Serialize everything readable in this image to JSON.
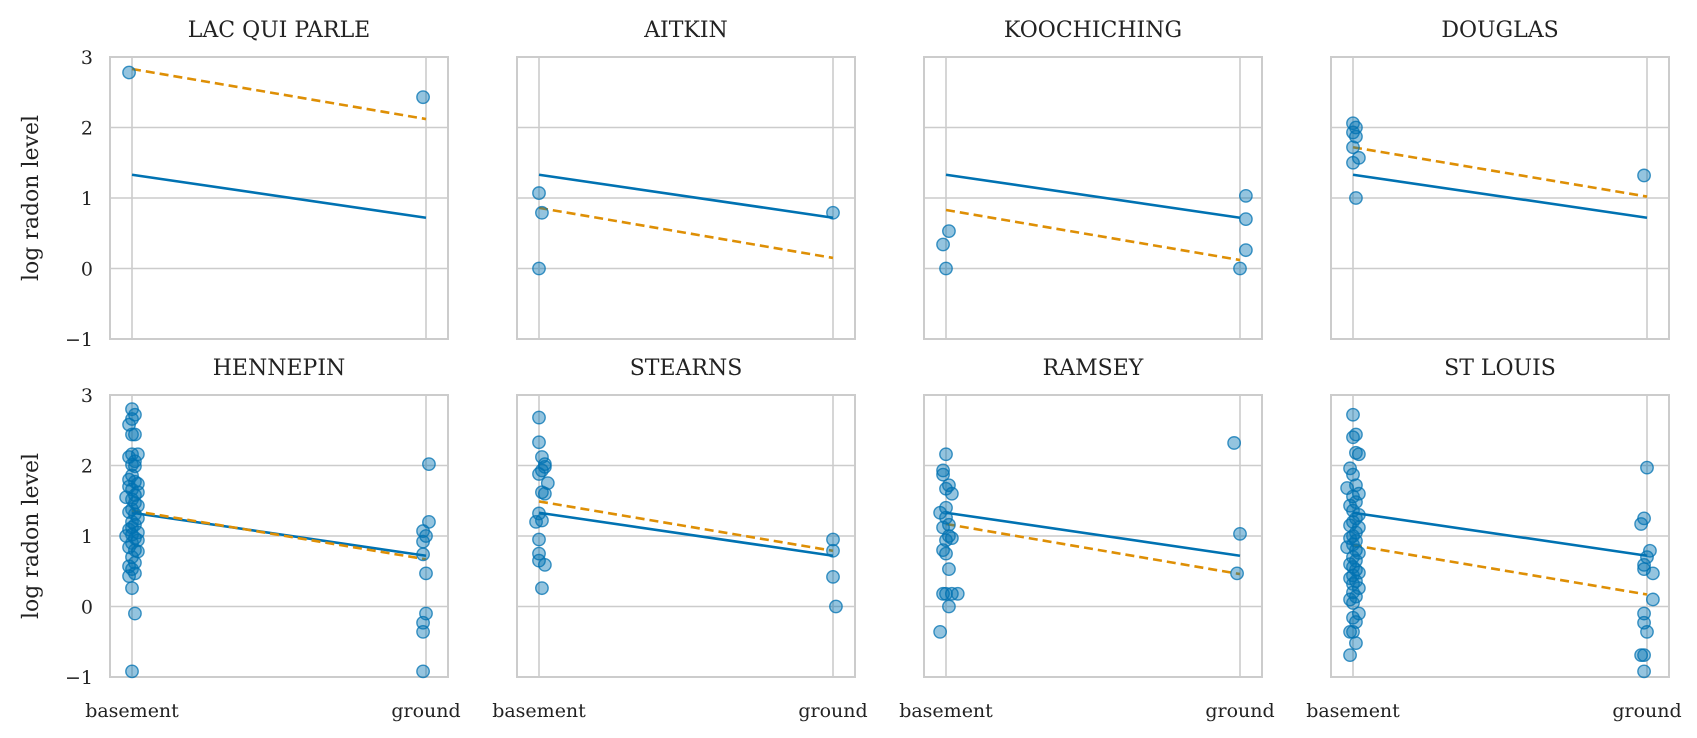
{
  "chart_data": {
    "type": "scatter",
    "ylabel": "log radon level",
    "ylim": [
      -1,
      3
    ],
    "yticks": [
      "−1",
      "0",
      "1",
      "2",
      "3"
    ],
    "ytick_values": [
      -1,
      0,
      1,
      2,
      3
    ],
    "xticks": [
      "basement",
      "ground"
    ],
    "xtick_values": [
      0,
      1
    ],
    "grid": true,
    "colors": {
      "points": "#0072b2",
      "pooled_line": "#0072b2",
      "county_line": "#de8f05",
      "frame": "#cccccc"
    },
    "pooled_line": {
      "basement": 1.33,
      "ground": 0.72
    },
    "panels": [
      {
        "title": "LAC QUI PARLE",
        "county_line": {
          "basement": 2.83,
          "ground": 2.12
        },
        "points": [
          [
            -0.01,
            2.78
          ],
          [
            0.99,
            2.43
          ]
        ]
      },
      {
        "title": "AITKIN",
        "county_line": {
          "basement": 0.86,
          "ground": 0.15
        },
        "points": [
          [
            0.0,
            1.07
          ],
          [
            0.01,
            0.79
          ],
          [
            0.0,
            0.0
          ],
          [
            1.0,
            0.79
          ]
        ]
      },
      {
        "title": "KOOCHICHING",
        "county_line": {
          "basement": 0.83,
          "ground": 0.12
        },
        "points": [
          [
            -0.01,
            0.34
          ],
          [
            0.01,
            0.53
          ],
          [
            0.0,
            0.0
          ],
          [
            1.02,
            1.03
          ],
          [
            1.02,
            0.7
          ],
          [
            1.02,
            0.26
          ],
          [
            1.0,
            0.0
          ]
        ]
      },
      {
        "title": "DOUGLAS",
        "county_line": {
          "basement": 1.72,
          "ground": 1.02
        },
        "points": [
          [
            0.0,
            2.06
          ],
          [
            0.01,
            2.0
          ],
          [
            0.0,
            1.93
          ],
          [
            0.01,
            1.87
          ],
          [
            0.0,
            1.72
          ],
          [
            0.02,
            1.57
          ],
          [
            0.0,
            1.5
          ],
          [
            0.01,
            1.0
          ],
          [
            0.99,
            1.32
          ]
        ]
      },
      {
        "title": "HENNEPIN",
        "county_line": {
          "basement": 1.36,
          "ground": 0.67
        },
        "points": [
          [
            0.0,
            2.8
          ],
          [
            0.01,
            2.72
          ],
          [
            0.0,
            2.66
          ],
          [
            -0.01,
            2.58
          ],
          [
            0.0,
            2.44
          ],
          [
            0.01,
            2.44
          ],
          [
            0.0,
            2.16
          ],
          [
            0.02,
            2.16
          ],
          [
            -0.01,
            2.12
          ],
          [
            0.01,
            2.06
          ],
          [
            0.0,
            2.01
          ],
          [
            0.01,
            1.99
          ],
          [
            0.0,
            1.86
          ],
          [
            -0.01,
            1.8
          ],
          [
            0.01,
            1.77
          ],
          [
            0.02,
            1.74
          ],
          [
            -0.01,
            1.7
          ],
          [
            0.0,
            1.66
          ],
          [
            0.02,
            1.62
          ],
          [
            0.01,
            1.58
          ],
          [
            -0.02,
            1.55
          ],
          [
            0.0,
            1.52
          ],
          [
            0.01,
            1.47
          ],
          [
            0.02,
            1.43
          ],
          [
            0.0,
            1.38
          ],
          [
            -0.01,
            1.34
          ],
          [
            0.01,
            1.31
          ],
          [
            0.02,
            1.25
          ],
          [
            0.0,
            1.2
          ],
          [
            0.01,
            1.16
          ],
          [
            0.0,
            1.12
          ],
          [
            -0.01,
            1.09
          ],
          [
            0.02,
            1.05
          ],
          [
            0.0,
            1.02
          ],
          [
            -0.02,
            1.0
          ],
          [
            0.01,
            0.97
          ],
          [
            0.02,
            0.94
          ],
          [
            0.0,
            0.9
          ],
          [
            -0.01,
            0.84
          ],
          [
            0.01,
            0.8
          ],
          [
            0.02,
            0.78
          ],
          [
            0.0,
            0.7
          ],
          [
            0.01,
            0.62
          ],
          [
            -0.01,
            0.57
          ],
          [
            0.0,
            0.53
          ],
          [
            0.01,
            0.47
          ],
          [
            -0.01,
            0.43
          ],
          [
            0.0,
            0.26
          ],
          [
            0.01,
            -0.1
          ],
          [
            0.0,
            -0.92
          ],
          [
            1.01,
            2.02
          ],
          [
            1.01,
            1.2
          ],
          [
            0.99,
            1.07
          ],
          [
            1.0,
            1.0
          ],
          [
            0.99,
            0.92
          ],
          [
            0.99,
            0.74
          ],
          [
            1.0,
            0.47
          ],
          [
            1.0,
            -0.1
          ],
          [
            0.99,
            -0.23
          ],
          [
            0.99,
            -0.36
          ],
          [
            0.99,
            -0.92
          ]
        ]
      },
      {
        "title": "STEARNS",
        "county_line": {
          "basement": 1.49,
          "ground": 0.79
        },
        "points": [
          [
            0.0,
            2.68
          ],
          [
            0.0,
            2.33
          ],
          [
            0.01,
            2.12
          ],
          [
            0.02,
            2.02
          ],
          [
            0.02,
            1.98
          ],
          [
            0.01,
            1.93
          ],
          [
            0.0,
            1.88
          ],
          [
            0.03,
            1.75
          ],
          [
            0.01,
            1.62
          ],
          [
            0.02,
            1.6
          ],
          [
            0.0,
            1.32
          ],
          [
            0.01,
            1.22
          ],
          [
            -0.01,
            1.2
          ],
          [
            0.0,
            0.95
          ],
          [
            0.0,
            0.75
          ],
          [
            0.0,
            0.65
          ],
          [
            0.02,
            0.59
          ],
          [
            0.01,
            0.26
          ],
          [
            1.0,
            0.95
          ],
          [
            1.0,
            0.79
          ],
          [
            1.0,
            0.42
          ],
          [
            1.01,
            0.0
          ]
        ]
      },
      {
        "title": "RAMSEY",
        "county_line": {
          "basement": 1.17,
          "ground": 0.46
        },
        "points": [
          [
            0.0,
            2.16
          ],
          [
            -0.01,
            1.93
          ],
          [
            -0.01,
            1.87
          ],
          [
            0.01,
            1.72
          ],
          [
            0.0,
            1.67
          ],
          [
            0.02,
            1.6
          ],
          [
            0.0,
            1.4
          ],
          [
            -0.02,
            1.33
          ],
          [
            0.0,
            1.26
          ],
          [
            0.01,
            1.16
          ],
          [
            -0.01,
            1.12
          ],
          [
            0.01,
            1.0
          ],
          [
            0.02,
            0.97
          ],
          [
            0.0,
            0.94
          ],
          [
            -0.01,
            0.8
          ],
          [
            0.0,
            0.75
          ],
          [
            0.01,
            0.53
          ],
          [
            0.0,
            0.18
          ],
          [
            0.02,
            0.18
          ],
          [
            0.04,
            0.18
          ],
          [
            -0.01,
            0.18
          ],
          [
            0.01,
            0.0
          ],
          [
            -0.02,
            -0.36
          ],
          [
            0.98,
            2.32
          ],
          [
            1.0,
            1.03
          ],
          [
            0.99,
            0.47
          ]
        ]
      },
      {
        "title": "ST LOUIS",
        "county_line": {
          "basement": 0.87,
          "ground": 0.17
        },
        "points": [
          [
            0.0,
            2.72
          ],
          [
            0.01,
            2.44
          ],
          [
            0.0,
            2.4
          ],
          [
            0.01,
            2.18
          ],
          [
            0.02,
            2.16
          ],
          [
            -0.01,
            1.96
          ],
          [
            0.0,
            1.87
          ],
          [
            0.01,
            1.72
          ],
          [
            -0.02,
            1.68
          ],
          [
            0.02,
            1.6
          ],
          [
            0.0,
            1.56
          ],
          [
            0.01,
            1.48
          ],
          [
            -0.01,
            1.43
          ],
          [
            0.0,
            1.36
          ],
          [
            0.02,
            1.3
          ],
          [
            0.01,
            1.25
          ],
          [
            0.0,
            1.2
          ],
          [
            -0.01,
            1.15
          ],
          [
            0.02,
            1.12
          ],
          [
            0.01,
            1.05
          ],
          [
            0.0,
            1.0
          ],
          [
            -0.01,
            0.97
          ],
          [
            0.01,
            0.93
          ],
          [
            0.0,
            0.88
          ],
          [
            -0.02,
            0.84
          ],
          [
            0.01,
            0.8
          ],
          [
            0.02,
            0.76
          ],
          [
            0.0,
            0.7
          ],
          [
            0.01,
            0.65
          ],
          [
            -0.01,
            0.6
          ],
          [
            0.0,
            0.56
          ],
          [
            0.01,
            0.52
          ],
          [
            0.02,
            0.48
          ],
          [
            0.0,
            0.44
          ],
          [
            -0.01,
            0.4
          ],
          [
            0.01,
            0.36
          ],
          [
            0.0,
            0.32
          ],
          [
            0.02,
            0.26
          ],
          [
            0.0,
            0.2
          ],
          [
            0.01,
            0.14
          ],
          [
            -0.01,
            0.1
          ],
          [
            0.0,
            0.05
          ],
          [
            0.02,
            -0.1
          ],
          [
            0.0,
            -0.16
          ],
          [
            0.01,
            -0.22
          ],
          [
            -0.01,
            -0.36
          ],
          [
            0.0,
            -0.36
          ],
          [
            0.01,
            -0.52
          ],
          [
            -0.01,
            -0.69
          ],
          [
            1.0,
            1.97
          ],
          [
            0.99,
            1.25
          ],
          [
            0.98,
            1.17
          ],
          [
            1.01,
            0.79
          ],
          [
            1.0,
            0.7
          ],
          [
            0.99,
            0.59
          ],
          [
            0.99,
            0.53
          ],
          [
            1.02,
            0.47
          ],
          [
            1.02,
            0.1
          ],
          [
            0.99,
            -0.1
          ],
          [
            0.99,
            -0.23
          ],
          [
            1.0,
            -0.36
          ],
          [
            0.99,
            -0.69
          ],
          [
            0.98,
            -0.69
          ],
          [
            0.99,
            -0.92
          ]
        ]
      }
    ]
  }
}
